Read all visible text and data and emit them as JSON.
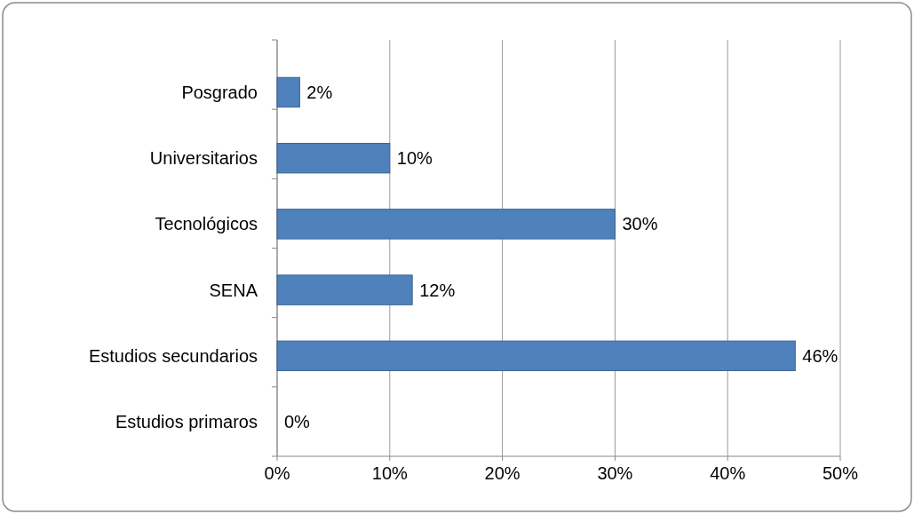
{
  "chart_data": {
    "type": "bar",
    "orientation": "horizontal",
    "categories": [
      "Posgrado",
      "Universitarios",
      "Tecnológicos",
      "SENA",
      "Estudios secundarios",
      "Estudios primaros"
    ],
    "values": [
      2,
      10,
      30,
      12,
      46,
      0
    ],
    "value_labels": [
      "2%",
      "10%",
      "30%",
      "12%",
      "46%",
      "0%"
    ],
    "color": "#4f81bd",
    "xlim": [
      0,
      50
    ],
    "xticks": [
      {
        "value": 0,
        "label": "0%"
      },
      {
        "value": 10,
        "label": "10%"
      },
      {
        "value": 20,
        "label": "20%"
      },
      {
        "value": 30,
        "label": "30%"
      },
      {
        "value": 40,
        "label": "40%"
      },
      {
        "value": 50,
        "label": "50%"
      }
    ],
    "grid": "x"
  }
}
